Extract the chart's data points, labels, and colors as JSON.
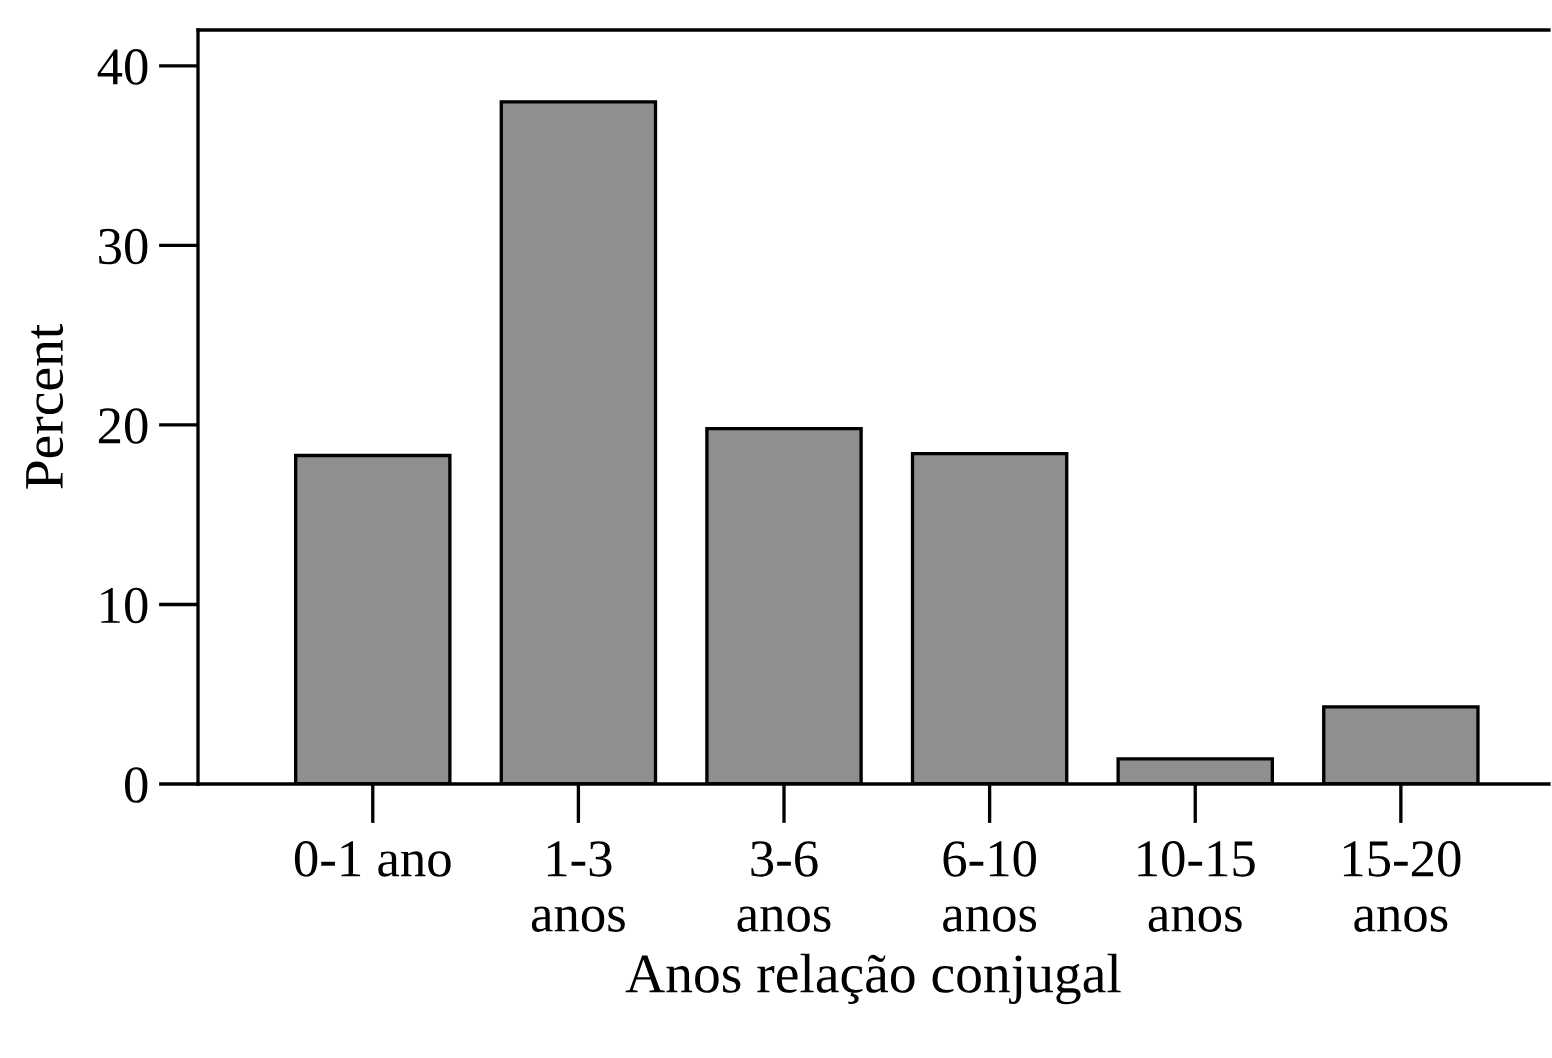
{
  "chart_data": {
    "type": "bar",
    "xlabel": "Anos relação conjugal",
    "ylabel": "Percent",
    "categories": [
      "0-1 ano",
      "1-3\nanos",
      "3-6\nanos",
      "6-10\nanos",
      "10-15\nanos",
      "15-20\nanos"
    ],
    "values": [
      18.3,
      38.0,
      19.8,
      18.4,
      1.4,
      4.3
    ],
    "color": "#8f8f8f",
    "ylim": [
      0,
      42
    ],
    "yticks": [
      0,
      10,
      20,
      30,
      40
    ],
    "grid": false
  }
}
